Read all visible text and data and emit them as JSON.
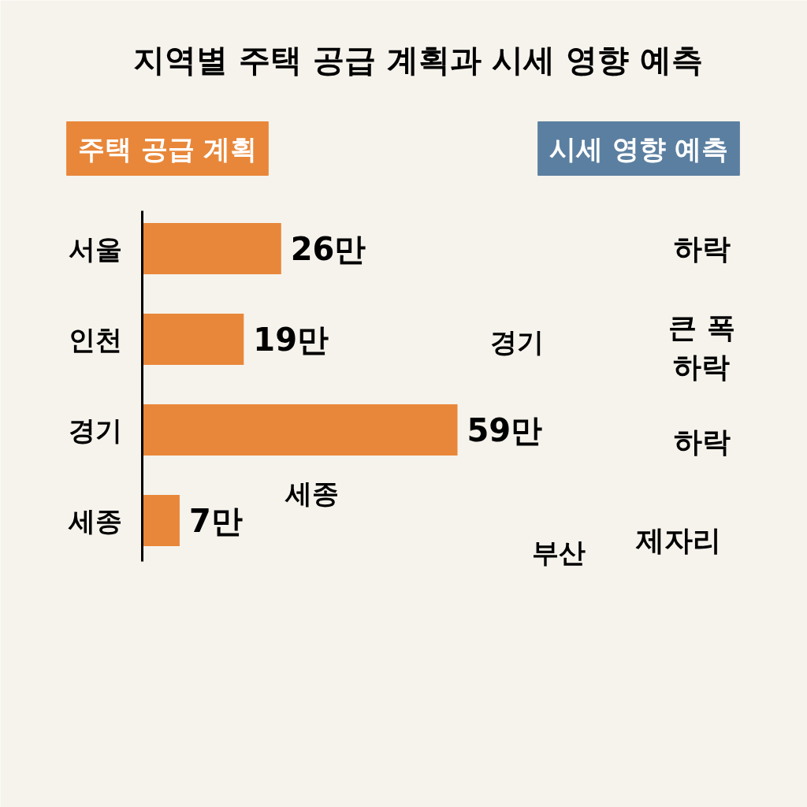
{
  "chart_data": {
    "type": "bar",
    "orientation": "horizontal",
    "title": "지역별 주택 공급 계획과 시세 영향 예측",
    "categories": [
      "서울",
      "인천",
      "경기",
      "세종"
    ],
    "values": [
      26,
      19,
      59,
      7
    ],
    "value_labels": [
      "26만",
      "19만",
      "59만",
      "7만"
    ],
    "color": "#e8873a",
    "tick_labels": "y",
    "grid": false,
    "annotations": [
      "주택 공급 계획",
      "시세 영향 예측",
      "경기",
      "세종",
      "부산",
      "하락",
      "큰 폭\n하락",
      "하락",
      "제자리"
    ]
  }
}
